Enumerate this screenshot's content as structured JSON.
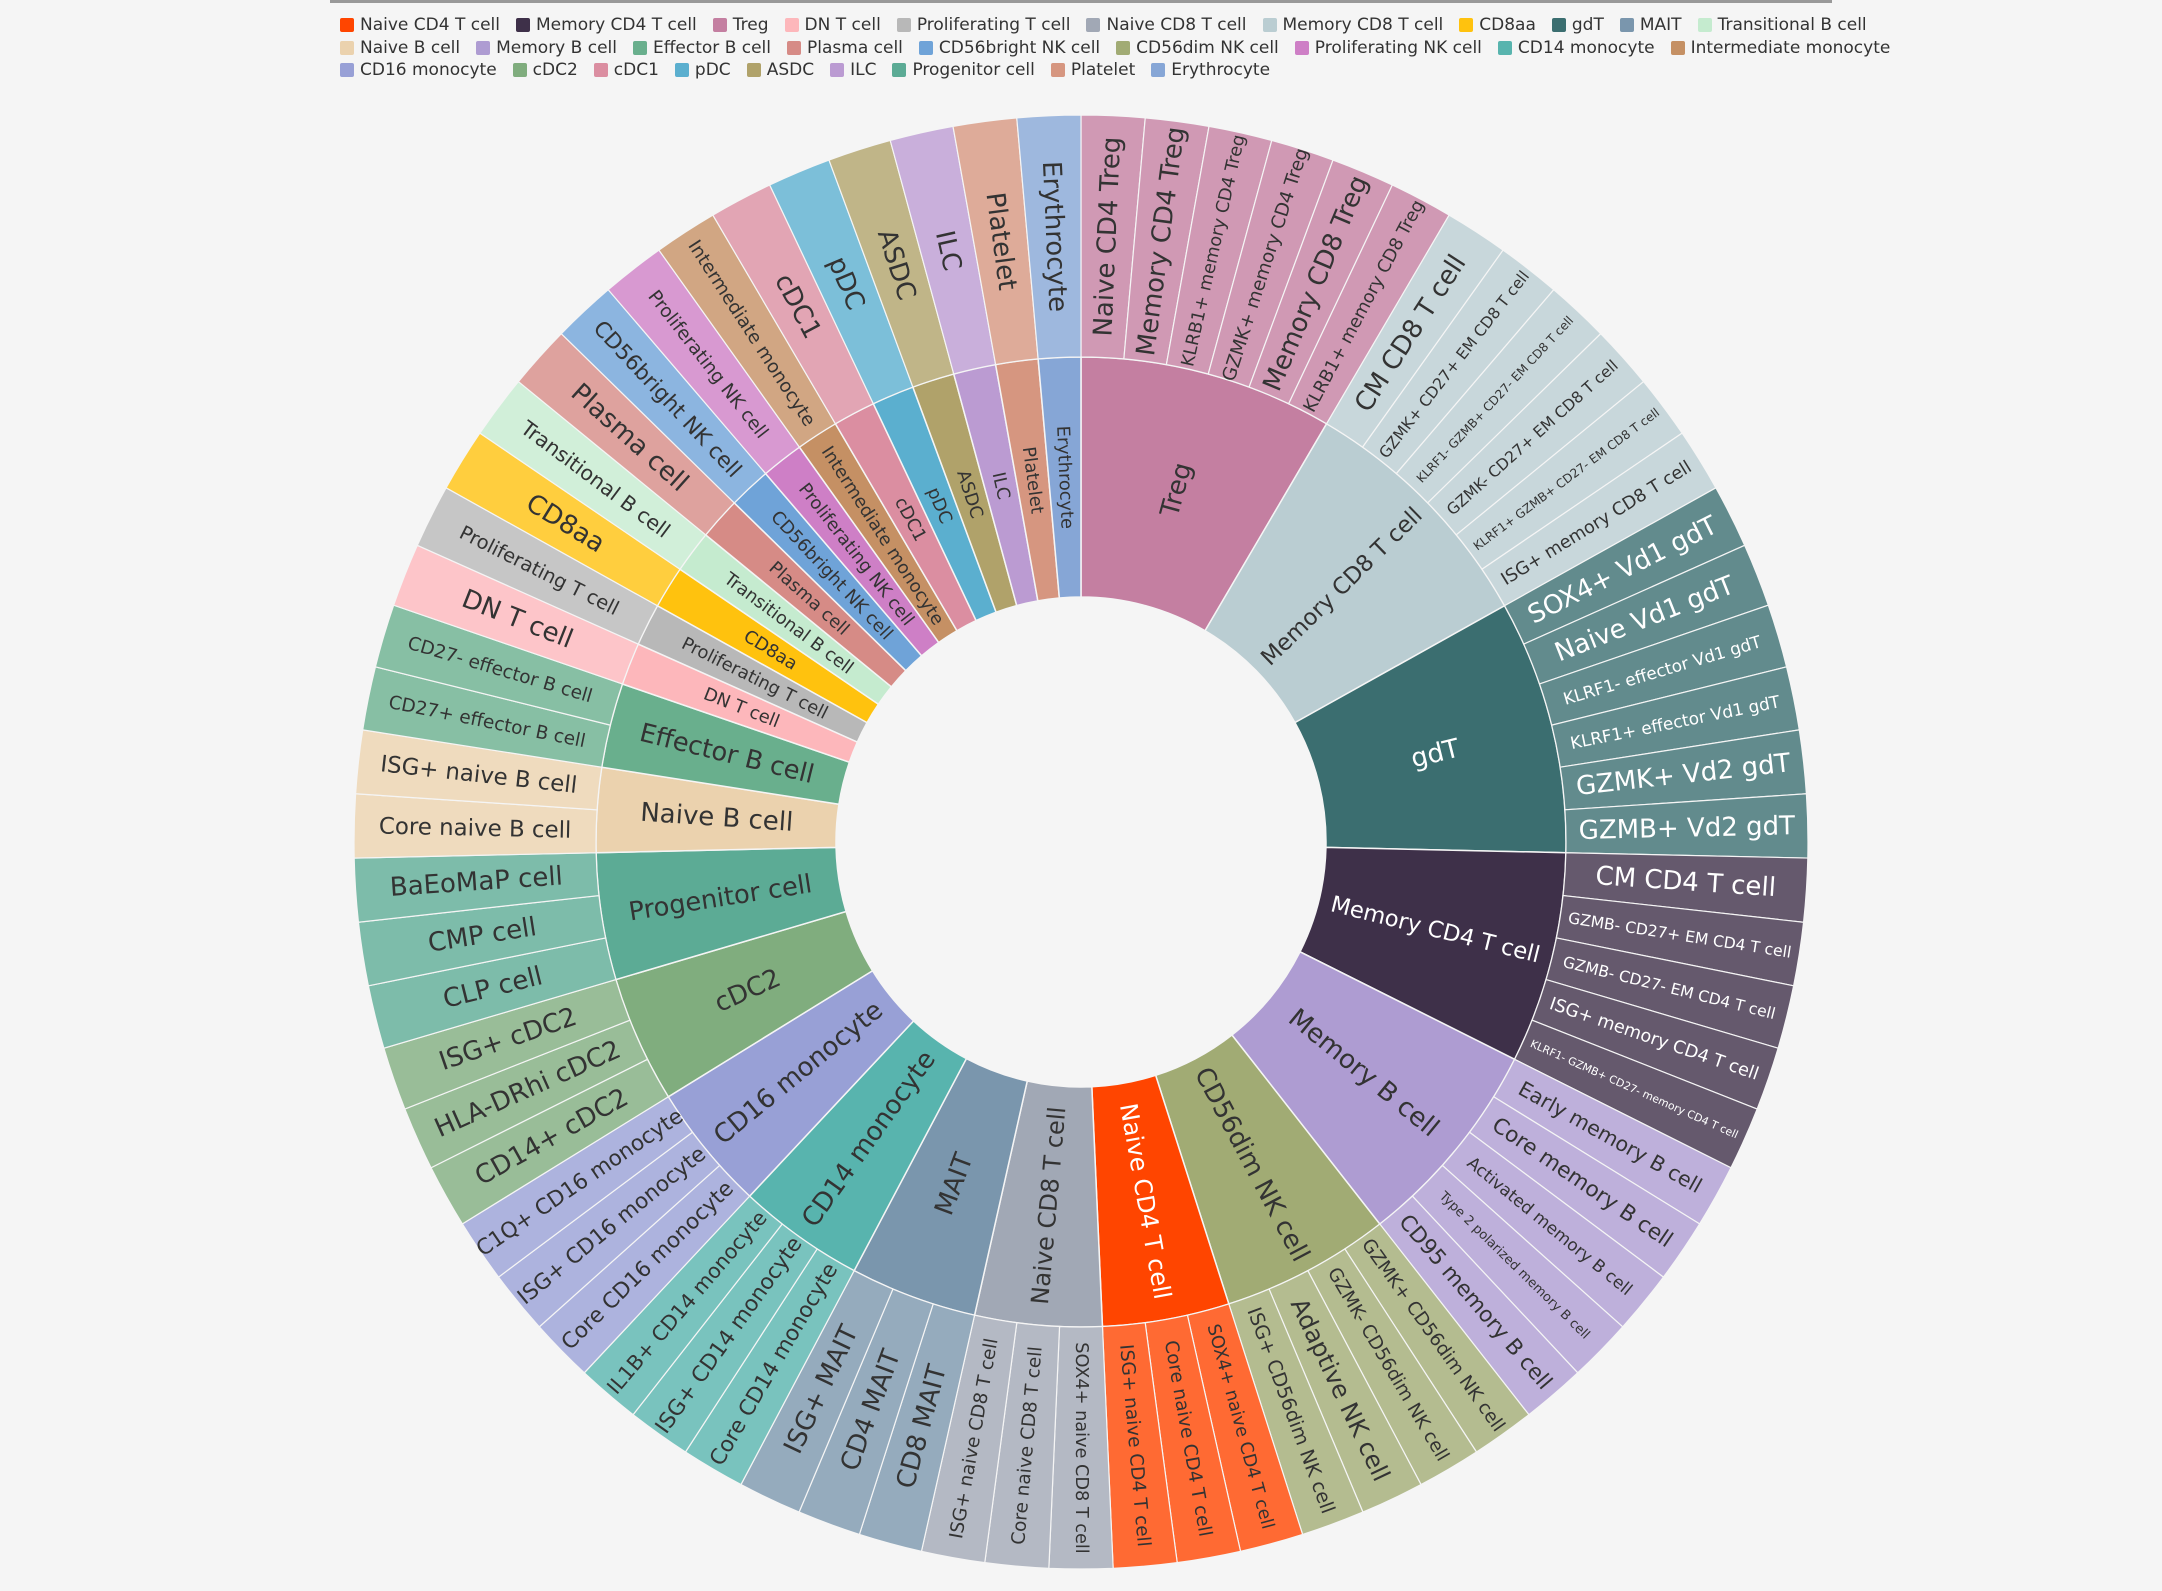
{
  "chart_data": {
    "type": "sunburst",
    "title": "",
    "groups": [
      {
        "name": "Treg",
        "color": "#C47FA1",
        "children": [
          "Naive CD4 Treg",
          "Memory CD4 Treg",
          "KLRB1+ memory CD4 Treg",
          "GZMK+ memory CD4 Treg",
          "Memory CD8 Treg",
          "KLRB1+ memory CD8 Treg"
        ]
      },
      {
        "name": "Memory CD8 T cell",
        "color": "#BACDD2",
        "children": [
          "CM CD8 T cell",
          "GZMK+ CD27+ EM CD8 T cell",
          "KLRF1- GZMB+ CD27- EM CD8 T cell",
          "GZMK- CD27+ EM CD8 T cell",
          "KLRF1+ GZMB+ CD27- EM CD8 T cell",
          "ISG+ memory CD8 T cell"
        ]
      },
      {
        "name": "gdT",
        "color": "#3B6E70",
        "children": [
          "SOX4+ Vd1 gdT",
          "Naive Vd1 gdT",
          "KLRF1- effector Vd1 gdT",
          "KLRF1+ effector Vd1 gdT",
          "GZMK+ Vd2 gdT",
          "GZMB+ Vd2 gdT"
        ]
      },
      {
        "name": "Memory CD4 T cell",
        "color": "#3E3049",
        "children": [
          "CM CD4 T cell",
          "GZMB- CD27+ EM CD4 T cell",
          "GZMB- CD27- EM CD4 T cell",
          "ISG+ memory CD4 T cell",
          "KLRF1- GZMB+ CD27- memory CD4 T cell"
        ]
      },
      {
        "name": "Memory B cell",
        "color": "#AE9CD2",
        "children": [
          "Early memory B cell",
          "Core memory B cell",
          "Activated memory B cell",
          "Type 2 polarized memory B cell",
          "CD95 memory B cell"
        ]
      },
      {
        "name": "CD56dim NK cell",
        "color": "#A1AB74",
        "children": [
          "GZMK+ CD56dim NK cell",
          "GZMK- CD56dim NK cell",
          "Adaptive NK cell",
          "ISG+ CD56dim NK cell"
        ]
      },
      {
        "name": "Naive CD4 T cell",
        "color": "#FF4500",
        "children": [
          "SOX4+ naive CD4 T cell",
          "Core naive CD4 T cell",
          "ISG+ naive CD4 T cell"
        ]
      },
      {
        "name": "Naive CD8 T cell",
        "color": "#A1A8B5",
        "children": [
          "SOX4+ naive CD8 T cell",
          "Core naive CD8 T cell",
          "ISG+ naive CD8 T cell"
        ]
      },
      {
        "name": "MAIT",
        "color": "#7A96AD",
        "children": [
          "CD8 MAIT",
          "CD4 MAIT",
          "ISG+ MAIT"
        ]
      },
      {
        "name": "CD14 monocyte",
        "color": "#58B4AE",
        "children": [
          "Core CD14 monocyte",
          "ISG+ CD14 monocyte",
          "IL1B+ CD14 monocyte"
        ]
      },
      {
        "name": "CD16 monocyte",
        "color": "#98A0D6",
        "children": [
          "Core CD16 monocyte",
          "ISG+ CD16 monocyte",
          "C1Q+ CD16 monocyte"
        ]
      },
      {
        "name": "cDC2",
        "color": "#80AD7E",
        "children": [
          "CD14+ cDC2",
          "HLA-DRhi cDC2",
          "ISG+ cDC2"
        ]
      },
      {
        "name": "Progenitor cell",
        "color": "#5CAB95",
        "children": [
          "CLP cell",
          "CMP cell",
          "BaEoMaP cell"
        ]
      },
      {
        "name": "Naive B cell",
        "color": "#EBD2AE",
        "children": [
          "Core naive B cell",
          "ISG+ naive B cell"
        ]
      },
      {
        "name": "Effector B cell",
        "color": "#69AF8D",
        "children": [
          "CD27+ effector B cell",
          "CD27- effector B cell"
        ]
      },
      {
        "name": "DN T cell",
        "color": "#FDB7BB",
        "children": [
          "DN T cell"
        ]
      },
      {
        "name": "Proliferating T cell",
        "color": "#B8B8B8",
        "children": [
          "Proliferating T cell"
        ]
      },
      {
        "name": "CD8aa",
        "color": "#FFC20E",
        "children": [
          "CD8aa"
        ]
      },
      {
        "name": "Transitional B cell",
        "color": "#C5EBCF",
        "children": [
          "Transitional B cell"
        ]
      },
      {
        "name": "Plasma cell",
        "color": "#D68B86",
        "children": [
          "Plasma cell"
        ]
      },
      {
        "name": "CD56bright NK cell",
        "color": "#6FA3D8",
        "children": [
          "CD56bright NK cell"
        ]
      },
      {
        "name": "Proliferating NK cell",
        "color": "#CE7FC6",
        "children": [
          "Proliferating NK cell"
        ]
      },
      {
        "name": "Intermediate monocyte",
        "color": "#C59064",
        "children": [
          "Intermediate monocyte"
        ]
      },
      {
        "name": "cDC1",
        "color": "#DB8EA1",
        "children": [
          "cDC1"
        ]
      },
      {
        "name": "pDC",
        "color": "#5BAFCF",
        "children": [
          "pDC"
        ]
      },
      {
        "name": "ASDC",
        "color": "#B0A26A",
        "children": [
          "ASDC"
        ]
      },
      {
        "name": "ILC",
        "color": "#BB9BD2",
        "children": [
          "ILC"
        ]
      },
      {
        "name": "Platelet",
        "color": "#D69680",
        "children": [
          "Platelet"
        ]
      },
      {
        "name": "Erythrocyte",
        "color": "#86A6D6",
        "children": [
          "Erythrocyte"
        ]
      }
    ],
    "legend": {
      "placement": "top",
      "rows": [
        [
          [
            "Naive CD4 T cell",
            "#FF4500"
          ],
          [
            "Memory CD4 T cell",
            "#3E3049"
          ],
          [
            "Treg",
            "#C47FA1"
          ],
          [
            "DN T cell",
            "#FDB7BB"
          ],
          [
            "Proliferating T cell",
            "#B8B8B8"
          ],
          [
            "Naive CD8 T cell",
            "#A1A8B5"
          ],
          [
            "Memory CD8 T cell",
            "#BACDD2"
          ],
          [
            "CD8aa",
            "#FFC20E"
          ],
          [
            "gdT",
            "#3B6E70"
          ],
          [
            "MAIT",
            "#7A96AD"
          ],
          [
            "Transitional B cell",
            "#C5EBCF"
          ]
        ],
        [
          [
            "Naive B cell",
            "#EBD2AE"
          ],
          [
            "Memory B cell",
            "#AE9CD2"
          ],
          [
            "Effector B cell",
            "#69AF8D"
          ],
          [
            "Plasma cell",
            "#D68B86"
          ],
          [
            "CD56bright NK cell",
            "#6FA3D8"
          ],
          [
            "CD56dim NK cell",
            "#A1AB74"
          ],
          [
            "Proliferating NK cell",
            "#CE7FC6"
          ],
          [
            "CD14 monocyte",
            "#58B4AE"
          ],
          [
            "Intermediate monocyte",
            "#C59064"
          ]
        ],
        [
          [
            "CD16 monocyte",
            "#98A0D6"
          ],
          [
            "cDC2",
            "#80AD7E"
          ],
          [
            "cDC1",
            "#DB8EA1"
          ],
          [
            "pDC",
            "#5BAFCF"
          ],
          [
            "ASDC",
            "#B0A26A"
          ],
          [
            "ILC",
            "#BB9BD2"
          ],
          [
            "Progenitor cell",
            "#5CAB95"
          ],
          [
            "Platelet",
            "#D69680"
          ],
          [
            "Erythrocyte",
            "#86A6D6"
          ]
        ]
      ]
    }
  }
}
